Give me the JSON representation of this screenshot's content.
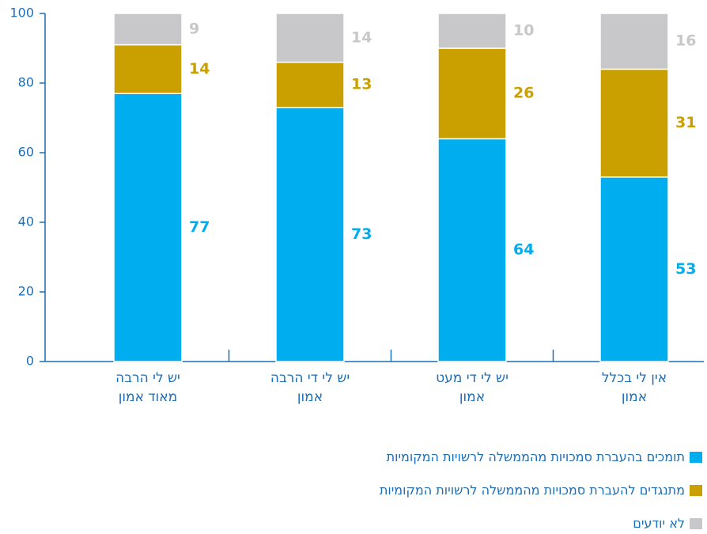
{
  "chart_data": {
    "type": "stacked_bar",
    "categories": [
      "יש לי הרבה מאוד אמון",
      "יש לי די הרבה אמון",
      "יש לי די מעט אמון",
      "אין לי בכלל אמון"
    ],
    "series": [
      {
        "name": "תומכים בהעברת סמכויות מהממשלה לרשויות המקומיות",
        "color": "#00aeef",
        "values": [
          77,
          73,
          64,
          53
        ]
      },
      {
        "name": "מתנגדים להעברת סמכויות מהממשלה לרשויות המקומיות",
        "color": "#c9a000",
        "values": [
          14,
          13,
          26,
          31
        ]
      },
      {
        "name": "לא יודעים",
        "color": "#c8c8ca",
        "values": [
          9,
          14,
          10,
          16
        ]
      }
    ],
    "ylim": [
      0,
      100
    ],
    "yticks": [
      0,
      20,
      40,
      60,
      80,
      100
    ],
    "grid": false
  }
}
